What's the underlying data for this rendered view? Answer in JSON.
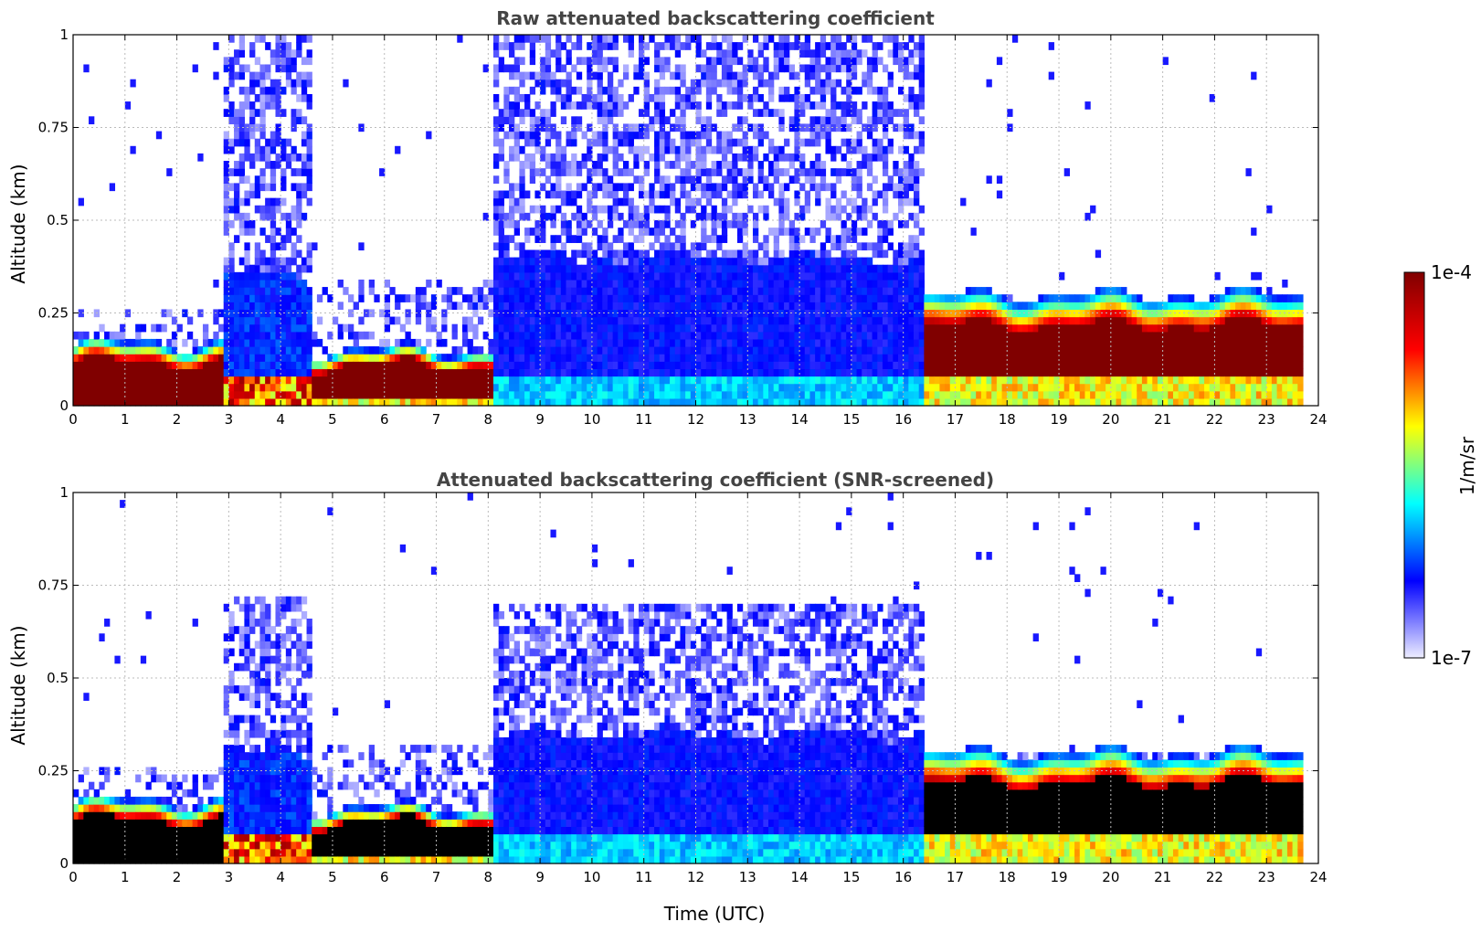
{
  "chart_data": [
    {
      "type": "heatmap",
      "title": "Raw attenuated backscattering coefficient",
      "ylabel": "Altitude (km)",
      "xlabel": "",
      "xlim": [
        0,
        24
      ],
      "ylim": [
        0,
        1
      ],
      "x_ticks": [
        "0",
        "1",
        "2",
        "3",
        "4",
        "5",
        "6",
        "7",
        "8",
        "9",
        "10",
        "11",
        "12",
        "13",
        "14",
        "15",
        "16",
        "17",
        "18",
        "19",
        "20",
        "21",
        "22",
        "23",
        "24"
      ],
      "y_ticks": [
        "0",
        "0.25",
        "0.5",
        "0.75",
        "1"
      ],
      "y_tick_values": [
        0,
        0.25,
        0.5,
        0.75,
        1
      ],
      "grid": true,
      "saturated_color": "#800000",
      "regimes": [
        {
          "from": 0.0,
          "to": 2.9,
          "boundary_layer_top_km": 0.17,
          "core_bottom_km": 0.0,
          "core_top_km": 0.12,
          "noise_top_km": 0.25,
          "level": "high"
        },
        {
          "from": 2.9,
          "to": 4.6,
          "boundary_layer_top_km": 0.35,
          "core_bottom_km": 0.0,
          "core_top_km": 0.08,
          "noise_top_km": 1.0,
          "level": "mixed"
        },
        {
          "from": 4.6,
          "to": 8.1,
          "boundary_layer_top_km": 0.15,
          "core_bottom_km": 0.02,
          "core_top_km": 0.11,
          "noise_top_km": 0.35,
          "level": "high"
        },
        {
          "from": 8.1,
          "to": 16.4,
          "boundary_layer_top_km": 0.4,
          "core_bottom_km": 0.0,
          "core_top_km": 0.08,
          "noise_top_km": 1.0,
          "level": "low"
        },
        {
          "from": 16.4,
          "to": 23.65,
          "boundary_layer_top_km": 0.3,
          "core_bottom_km": 0.08,
          "core_top_km": 0.22,
          "noise_top_km": 0.3,
          "level": "high"
        }
      ]
    },
    {
      "type": "heatmap",
      "title": "Attenuated backscattering coefficient (SNR-screened)",
      "ylabel": "Altitude (km)",
      "xlabel": "Time (UTC)",
      "xlim": [
        0,
        24
      ],
      "ylim": [
        0,
        1
      ],
      "x_ticks": [
        "0",
        "1",
        "2",
        "3",
        "4",
        "5",
        "6",
        "7",
        "8",
        "9",
        "10",
        "11",
        "12",
        "13",
        "14",
        "15",
        "16",
        "17",
        "18",
        "19",
        "20",
        "21",
        "22",
        "23",
        "24"
      ],
      "y_ticks": [
        "0",
        "0.25",
        "0.5",
        "0.75",
        "1"
      ],
      "y_tick_values": [
        0,
        0.25,
        0.5,
        0.75,
        1
      ],
      "grid": true,
      "saturated_color": "#000000",
      "regimes": [
        {
          "from": 0.0,
          "to": 2.9,
          "boundary_layer_top_km": 0.17,
          "core_bottom_km": 0.0,
          "core_top_km": 0.12,
          "noise_top_km": 0.25,
          "level": "high"
        },
        {
          "from": 2.9,
          "to": 4.6,
          "boundary_layer_top_km": 0.3,
          "core_bottom_km": 0.0,
          "core_top_km": 0.08,
          "noise_top_km": 0.72,
          "level": "mixed"
        },
        {
          "from": 4.6,
          "to": 8.1,
          "boundary_layer_top_km": 0.15,
          "core_bottom_km": 0.02,
          "core_top_km": 0.11,
          "noise_top_km": 0.32,
          "level": "high"
        },
        {
          "from": 8.1,
          "to": 16.4,
          "boundary_layer_top_km": 0.35,
          "core_bottom_km": 0.0,
          "core_top_km": 0.08,
          "noise_top_km": 0.7,
          "level": "low"
        },
        {
          "from": 16.4,
          "to": 23.65,
          "boundary_layer_top_km": 0.3,
          "core_bottom_km": 0.08,
          "core_top_km": 0.22,
          "noise_top_km": 0.3,
          "level": "high"
        }
      ]
    }
  ],
  "colorbar": {
    "label": "1/m/sr",
    "max_label": "1e-4",
    "min_label": "1e-7",
    "colormap": [
      "#eeeeff",
      "#0000ff",
      "#00ffff",
      "#ffff00",
      "#ff0000",
      "#800000"
    ]
  }
}
